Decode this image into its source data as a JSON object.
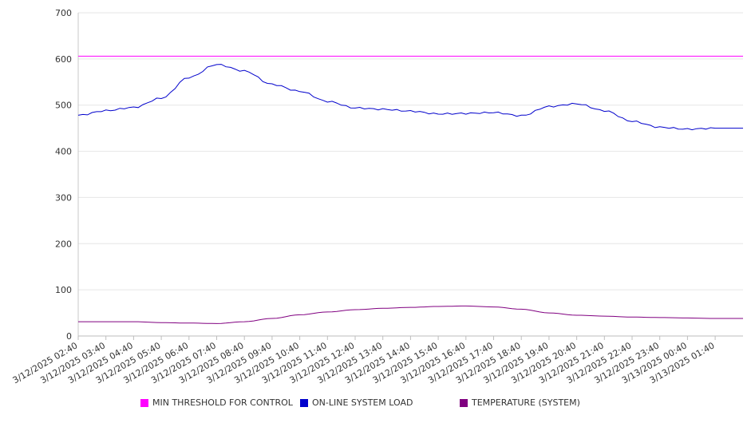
{
  "chart_data": {
    "type": "line",
    "title": "",
    "xlabel": "",
    "ylabel": "",
    "ylim": [
      0,
      700
    ],
    "y_ticks": [
      0,
      100,
      200,
      300,
      400,
      500,
      600,
      700
    ],
    "grid": "horizontal",
    "legend_position": "bottom",
    "x_tick_labels": [
      "3/12/2025 02:40",
      "3/12/2025 03:40",
      "3/12/2025 04:40",
      "3/12/2025 05:40",
      "3/12/2025 06:40",
      "3/12/2025 07:40",
      "3/12/2025 08:40",
      "3/12/2025 09:40",
      "3/12/2025 10:40",
      "3/12/2025 11:40",
      "3/12/2025 12:40",
      "3/12/2025 13:40",
      "3/12/2025 14:40",
      "3/12/2025 15:40",
      "3/12/2025 16:40",
      "3/12/2025 17:40",
      "3/12/2025 18:40",
      "3/12/2025 19:40",
      "3/12/2025 20:40",
      "3/12/2025 21:40",
      "3/12/2025 22:40",
      "3/12/2025 23:40",
      "3/13/2025 00:40",
      "3/13/2025 01:40"
    ],
    "x": [
      "3/12/2025 02:40",
      "3/12/2025 03:40",
      "3/12/2025 04:40",
      "3/12/2025 05:40",
      "3/12/2025 06:40",
      "3/12/2025 07:40",
      "3/12/2025 08:40",
      "3/12/2025 09:40",
      "3/12/2025 10:40",
      "3/12/2025 11:40",
      "3/12/2025 12:40",
      "3/12/2025 13:40",
      "3/12/2025 14:40",
      "3/12/2025 15:40",
      "3/12/2025 16:40",
      "3/12/2025 17:40",
      "3/12/2025 18:40",
      "3/12/2025 19:40",
      "3/12/2025 20:40",
      "3/12/2025 21:40",
      "3/12/2025 22:40",
      "3/12/2025 23:40",
      "3/13/2025 00:40",
      "3/13/2025 01:40"
    ],
    "series": [
      {
        "name": "MIN THRESHOLD FOR CONTROL",
        "color": "#ff00ff",
        "values": [
          606,
          606,
          606,
          606,
          606,
          606,
          606,
          606,
          606,
          606,
          606,
          606,
          606,
          606,
          606,
          606,
          606,
          606,
          606,
          606,
          606,
          606,
          606,
          606
        ]
      },
      {
        "name": "ON-LINE SYSTEM LOAD",
        "color": "#0000cc",
        "values": [
          478,
          488,
          495,
          515,
          560,
          588,
          574,
          545,
          530,
          508,
          494,
          491,
          487,
          481,
          482,
          484,
          477,
          497,
          503,
          488,
          465,
          452,
          448,
          450
        ]
      },
      {
        "name": "TEMPERATURE (SYSTEM)",
        "color": "#800080",
        "values": [
          31,
          31,
          31,
          29,
          28,
          27,
          31,
          38,
          46,
          52,
          57,
          60,
          62,
          64,
          65,
          63,
          58,
          50,
          45,
          43,
          41,
          40,
          39,
          38
        ]
      }
    ]
  }
}
